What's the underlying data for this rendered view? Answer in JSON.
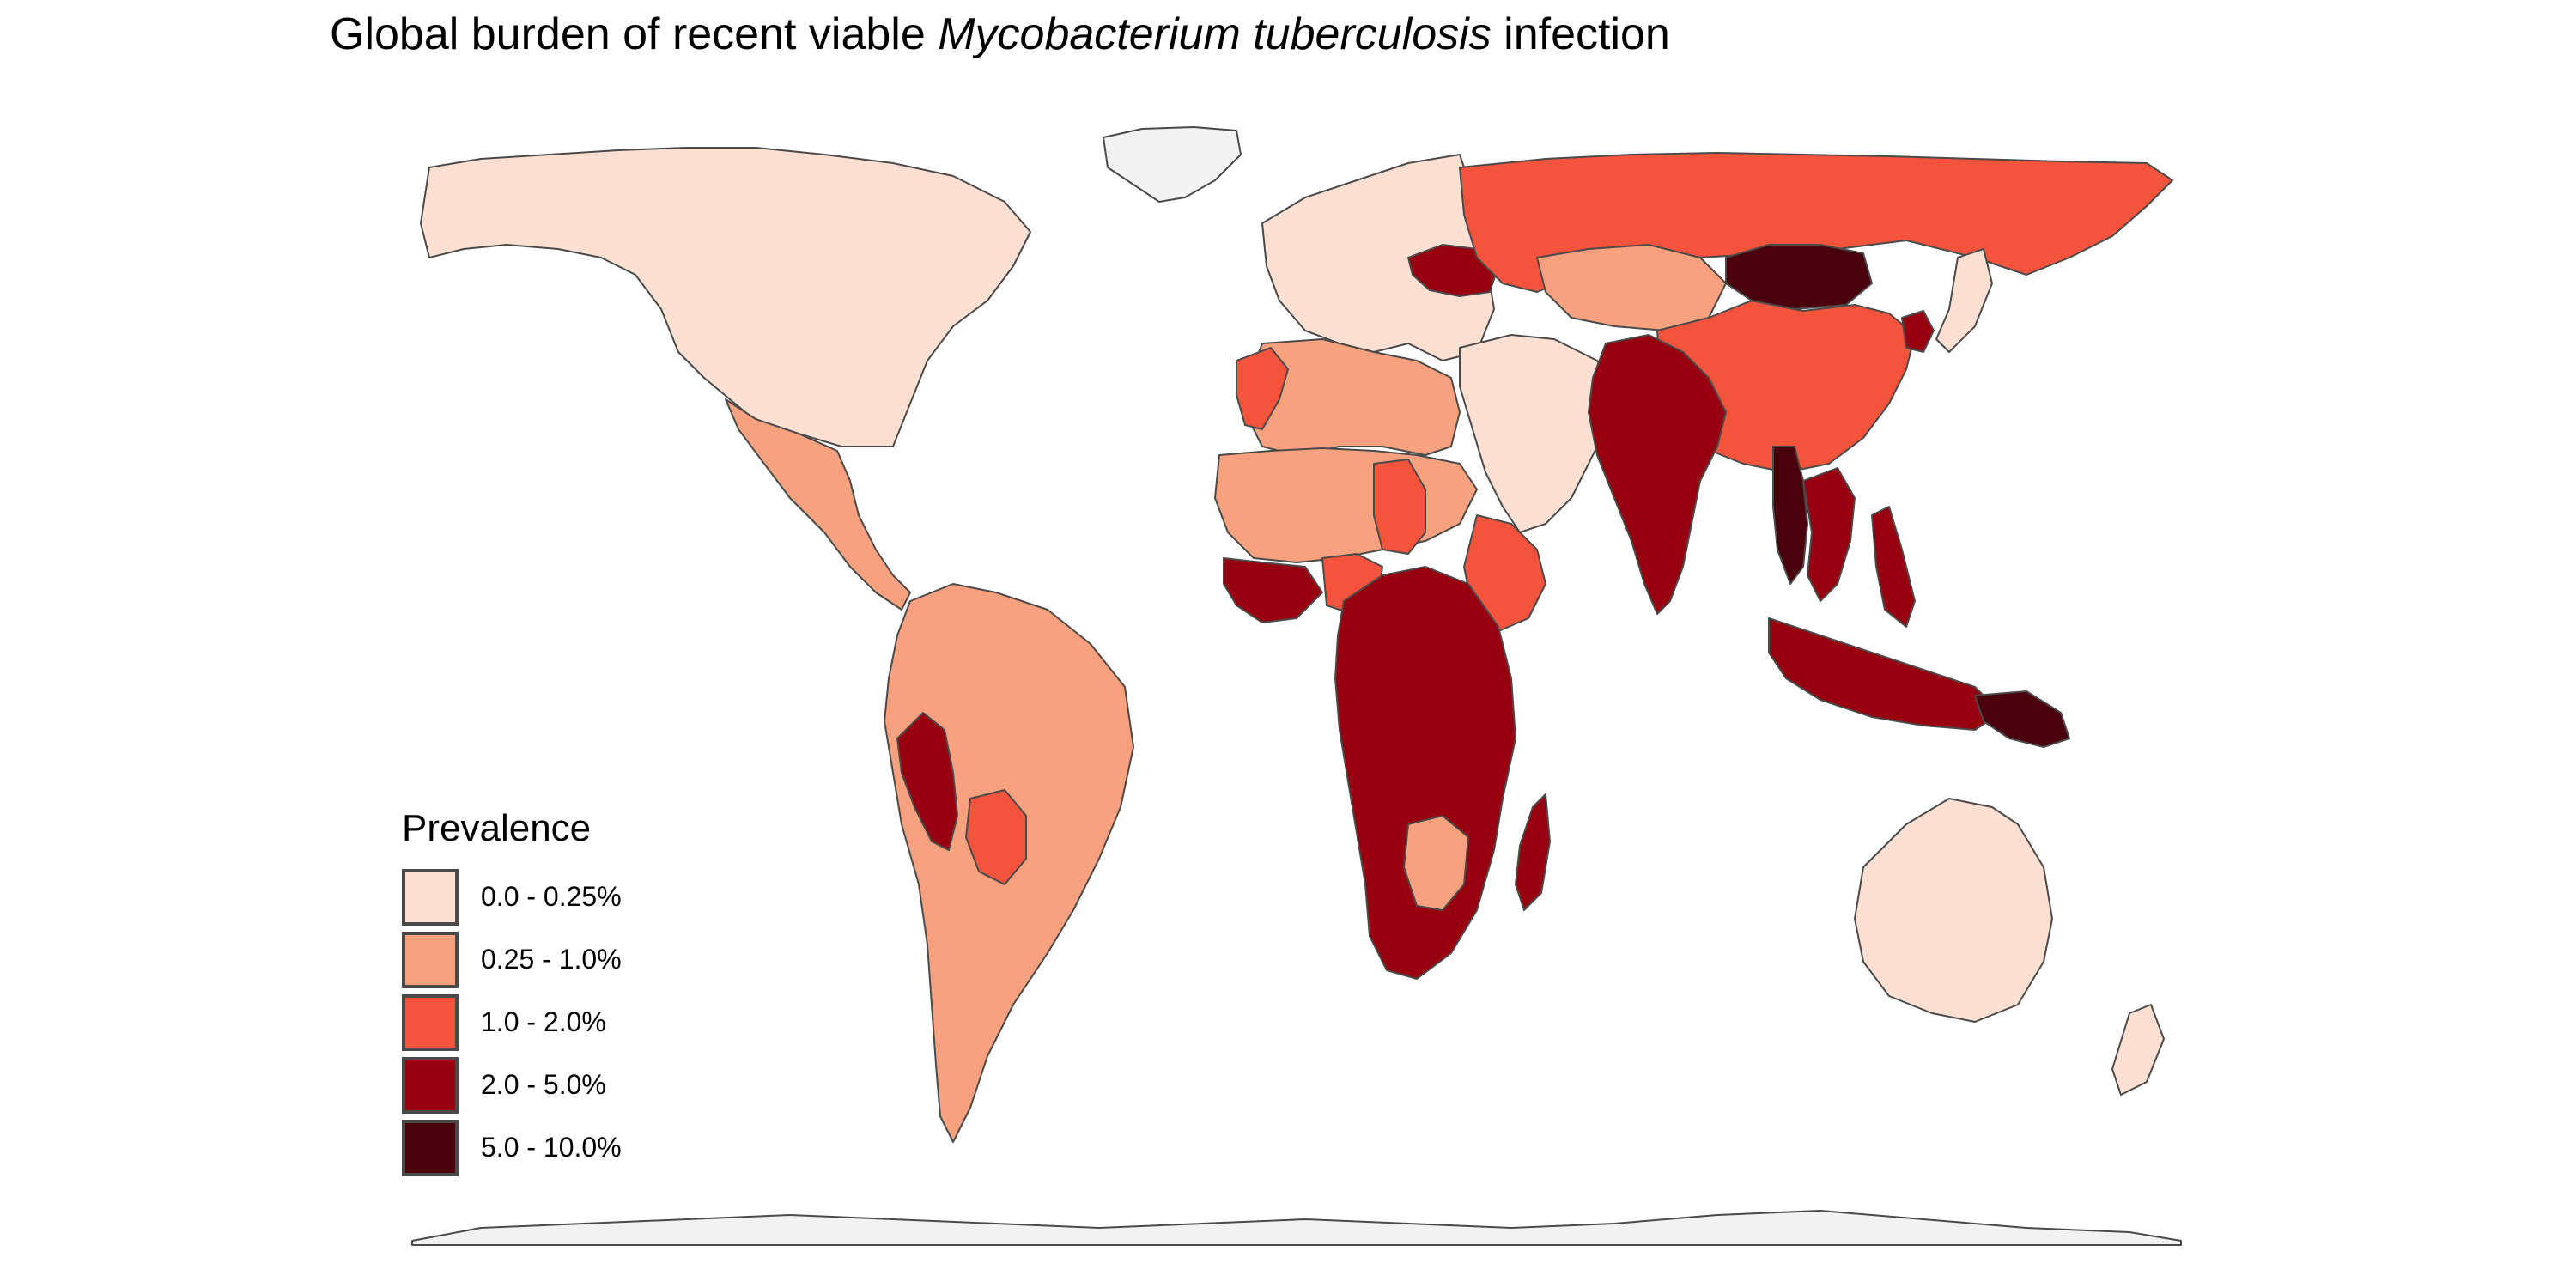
{
  "title": {
    "prefix": "Global burden of recent viable ",
    "italic": "Mycobacterium tuberculosis",
    "suffix": " infection"
  },
  "legend": {
    "title": "Prevalence",
    "bins": [
      {
        "label": "0.0 - 0.25%",
        "color": "#fde0d2"
      },
      {
        "label": "0.25 - 1.0%",
        "color": "#f7a17e"
      },
      {
        "label": "1.0 - 2.0%",
        "color": "#f4543c"
      },
      {
        "label": "2.0 - 5.0%",
        "color": "#980010"
      },
      {
        "label": "5.0 - 10.0%",
        "color": "#4a000c"
      }
    ]
  },
  "colors": {
    "border": "#4a4a4a",
    "polar": "#f2f2f2",
    "background": "#ffffff"
  },
  "regions": [
    {
      "name": "North America",
      "bin": 0
    },
    {
      "name": "Greenland",
      "bin": null
    },
    {
      "name": "Mexico & Central America",
      "bin": 1
    },
    {
      "name": "South America",
      "bin": 1
    },
    {
      "name": "Peru",
      "bin": 3
    },
    {
      "name": "Bolivia",
      "bin": 2
    },
    {
      "name": "Europe",
      "bin": 0
    },
    {
      "name": "Ukraine & Moldova",
      "bin": 3
    },
    {
      "name": "Russia",
      "bin": 2
    },
    {
      "name": "Kazakhstan",
      "bin": 1
    },
    {
      "name": "China",
      "bin": 2
    },
    {
      "name": "Mongolia",
      "bin": 4
    },
    {
      "name": "North Korea",
      "bin": 3
    },
    {
      "name": "Japan",
      "bin": 0
    },
    {
      "name": "Middle East",
      "bin": 0
    },
    {
      "name": "North Africa",
      "bin": 1
    },
    {
      "name": "Morocco",
      "bin": 2
    },
    {
      "name": "Sahel & West Africa",
      "bin": 1
    },
    {
      "name": "Coastal West Africa",
      "bin": 3
    },
    {
      "name": "Nigeria",
      "bin": 2
    },
    {
      "name": "Chad",
      "bin": 2
    },
    {
      "name": "Horn of Africa",
      "bin": 2
    },
    {
      "name": "Central & Southern Africa",
      "bin": 3
    },
    {
      "name": "Zambia & Malawi",
      "bin": 1
    },
    {
      "name": "Madagascar",
      "bin": 3
    },
    {
      "name": "South Asia",
      "bin": 3
    },
    {
      "name": "Myanmar",
      "bin": 4
    },
    {
      "name": "Southeast Asia",
      "bin": 3
    },
    {
      "name": "Philippines",
      "bin": 3
    },
    {
      "name": "Indonesia",
      "bin": 3
    },
    {
      "name": "Papua New Guinea",
      "bin": 4
    },
    {
      "name": "Australia",
      "bin": 0
    },
    {
      "name": "New Zealand",
      "bin": 0
    },
    {
      "name": "Antarctica",
      "bin": null
    }
  ]
}
